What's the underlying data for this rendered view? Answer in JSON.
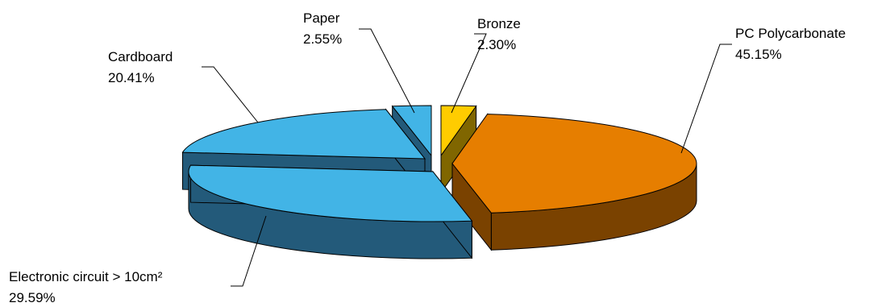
{
  "chart_data": {
    "type": "pie",
    "title": "",
    "legend": "none",
    "slices": [
      {
        "name": "Bronze",
        "value_label": "2.30%",
        "value": 2.3,
        "color": "#ffcc00",
        "side_color": "#806600"
      },
      {
        "name": "PC Polycarbonate",
        "value_label": "45.15%",
        "value": 45.15,
        "color": "#e67e00",
        "side_color": "#7a4200"
      },
      {
        "name": "Electronic circuit > 10cm²",
        "value_label": "29.59%",
        "value": 29.59,
        "color": "#42b4e6",
        "side_color": "#235a7a"
      },
      {
        "name": "Cardboard",
        "value_label": "20.41%",
        "value": 20.41,
        "color": "#42b4e6",
        "side_color": "#235a7a"
      },
      {
        "name": "Paper",
        "value_label": "2.55%",
        "value": 2.55,
        "color": "#42b4e6",
        "side_color": "#235a7a"
      }
    ]
  }
}
